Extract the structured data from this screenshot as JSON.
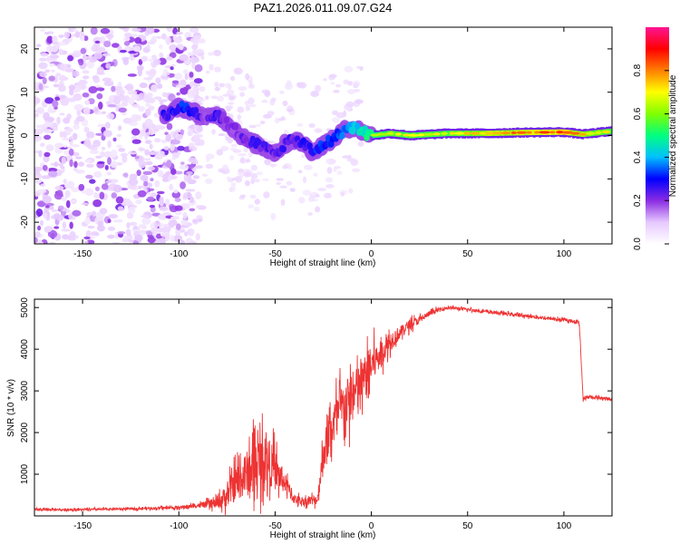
{
  "title": "PAZ1.2026.011.09.07.G24",
  "chart_data": [
    {
      "type": "heatmap",
      "panel": "spectrogram",
      "xlabel": "Height of straight line (km)",
      "ylabel": "Frequency (Hz)",
      "xlim": [
        -175,
        125
      ],
      "ylim": [
        -25,
        25
      ],
      "xticks": [
        -150,
        -100,
        -50,
        0,
        50,
        100
      ],
      "xtick_labels": [
        "-150",
        "-100",
        "-50",
        "0",
        "50",
        "100"
      ],
      "yticks": [
        -20,
        -10,
        0,
        10,
        20
      ],
      "ytick_labels": [
        "-20",
        "-10",
        "0",
        "10",
        "20"
      ],
      "colorbar": {
        "label": "Normalized spectral amplitude",
        "range": [
          0,
          1
        ],
        "ticks": [
          0.0,
          0.2,
          0.4,
          0.6,
          0.8
        ],
        "tick_labels": [
          "0.0",
          "0.2",
          "0.4",
          "0.6",
          "0.8"
        ],
        "colormap": [
          "#ffffff",
          "#e6c8ff",
          "#8a2be2",
          "#0000ff",
          "#00c0ff",
          "#00ff80",
          "#80ff00",
          "#ffff00",
          "#ff8000",
          "#ff0000",
          "#ff1493"
        ]
      },
      "ridge": {
        "x": [
          -105,
          -100,
          -95,
          -90,
          -85,
          -80,
          -75,
          -70,
          -65,
          -60,
          -55,
          -50,
          -45,
          -40,
          -35,
          -30,
          -25,
          -20,
          -15,
          -10,
          -5,
          0,
          10,
          20,
          40,
          60,
          80,
          100,
          110,
          125
        ],
        "y": [
          5,
          6.5,
          6,
          5,
          4,
          5,
          3,
          1,
          -1,
          -2,
          -3,
          -4,
          -2,
          -1,
          -2,
          -4,
          -2,
          -1,
          1,
          2,
          1,
          0,
          0.5,
          0,
          0.5,
          0.5,
          0.7,
          0.8,
          0.3,
          1
        ],
        "amplitude": [
          0.25,
          0.3,
          0.3,
          0.25,
          0.2,
          0.25,
          0.2,
          0.2,
          0.22,
          0.25,
          0.25,
          0.22,
          0.25,
          0.22,
          0.25,
          0.3,
          0.3,
          0.3,
          0.35,
          0.4,
          0.45,
          0.5,
          0.55,
          0.55,
          0.55,
          0.6,
          0.65,
          0.7,
          0.6,
          0.55
        ]
      },
      "noise_region_x": [
        -175,
        -88
      ]
    },
    {
      "type": "line",
      "panel": "snr",
      "color": "#ee3333",
      "xlabel": "Height of straight line (km)",
      "ylabel": "SNR (10 * v/v)",
      "xlim": [
        -175,
        125
      ],
      "ylim": [
        0,
        5200
      ],
      "xticks": [
        -150,
        -100,
        -50,
        0,
        50,
        100
      ],
      "xtick_labels": [
        "-150",
        "-100",
        "-50",
        "0",
        "50",
        "100"
      ],
      "yticks": [
        1000,
        2000,
        3000,
        4000,
        5000
      ],
      "ytick_labels": [
        "1000",
        "2000",
        "3000",
        "4000",
        "5000"
      ],
      "x": [
        -175,
        -150,
        -125,
        -100,
        -90,
        -80,
        -75,
        -70,
        -65,
        -60,
        -55,
        -50,
        -45,
        -40,
        -35,
        -30,
        -28,
        -25,
        -20,
        -15,
        -10,
        -5,
        0,
        5,
        10,
        15,
        20,
        25,
        30,
        35,
        40,
        50,
        60,
        70,
        80,
        90,
        100,
        108,
        110,
        112,
        115,
        125
      ],
      "values": [
        150,
        150,
        170,
        200,
        250,
        300,
        500,
        800,
        1000,
        1200,
        1400,
        1100,
        800,
        400,
        350,
        380,
        400,
        1500,
        2200,
        2600,
        2800,
        3200,
        3600,
        3900,
        4200,
        4400,
        4600,
        4700,
        4850,
        4950,
        5000,
        4950,
        4900,
        4850,
        4800,
        4750,
        4700,
        4650,
        2800,
        2850,
        2850,
        2800
      ],
      "noise_amplitude": [
        40,
        40,
        40,
        60,
        80,
        200,
        500,
        700,
        900,
        1100,
        1000,
        800,
        400,
        200,
        150,
        200,
        200,
        700,
        900,
        1000,
        1000,
        900,
        800,
        500,
        400,
        250,
        200,
        150,
        100,
        80,
        60,
        60,
        60,
        60,
        60,
        60,
        60,
        60,
        60,
        60,
        60,
        60
      ]
    }
  ]
}
